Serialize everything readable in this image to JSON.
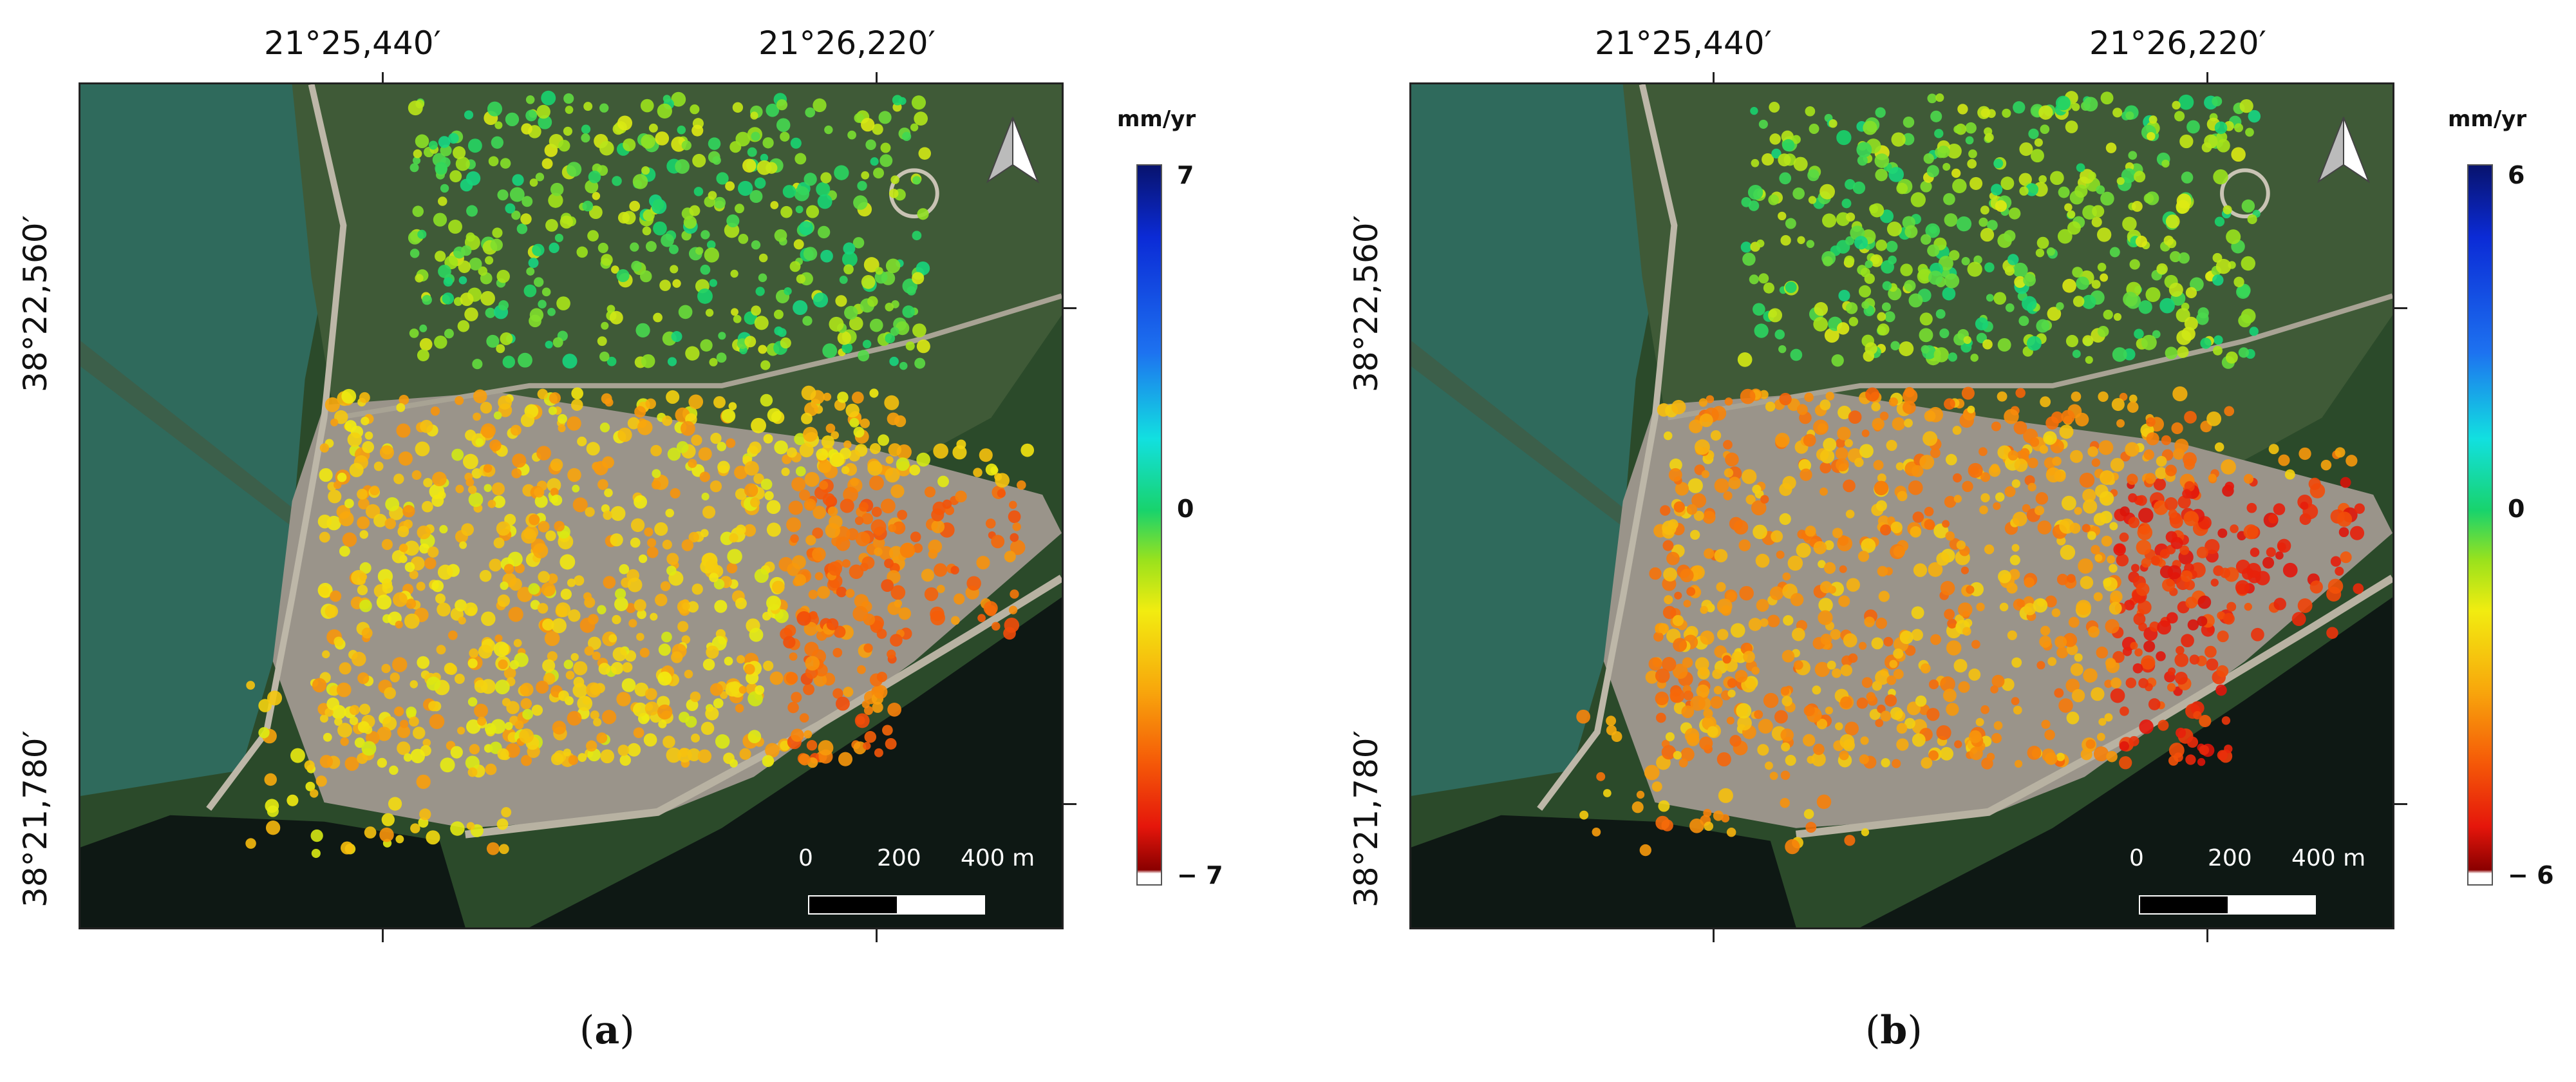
{
  "panels": [
    {
      "id": "a",
      "label_letter": "a",
      "longitude_labels": [
        "21°25,440′",
        "21°26,220′"
      ],
      "latitude_labels": [
        "38°22,560′",
        "38°21,780′"
      ],
      "colorbar": {
        "unit": "mm/yr",
        "max_label": "7",
        "mid_label": "0",
        "min_label": "− 7"
      },
      "scale_bar": {
        "labels": [
          "0",
          "200",
          "400 m"
        ]
      },
      "north_arrow_icon": "north-arrow-icon"
    },
    {
      "id": "b",
      "label_letter": "b",
      "longitude_labels": [
        "21°25,440′",
        "21°26,220′"
      ],
      "latitude_labels": [
        "38°22,560′",
        "38°21,780′"
      ],
      "colorbar": {
        "unit": "mm/yr",
        "max_label": "6",
        "mid_label": "0",
        "min_label": "− 6"
      },
      "scale_bar": {
        "labels": [
          "0",
          "200",
          "400 m"
        ]
      },
      "north_arrow_icon": "north-arrow-icon"
    }
  ],
  "colors": {
    "sea": "#2f6a5c",
    "dark_sea": "#0e1814",
    "vegetation": "#2b4a2a",
    "urban": "#9a948a",
    "colorbar_stops": [
      "#08136e",
      "#0b2bd6",
      "#12e0e0",
      "#18d36c",
      "#f2ec10",
      "#f8a70c",
      "#e5160b",
      "#8a0000"
    ]
  }
}
